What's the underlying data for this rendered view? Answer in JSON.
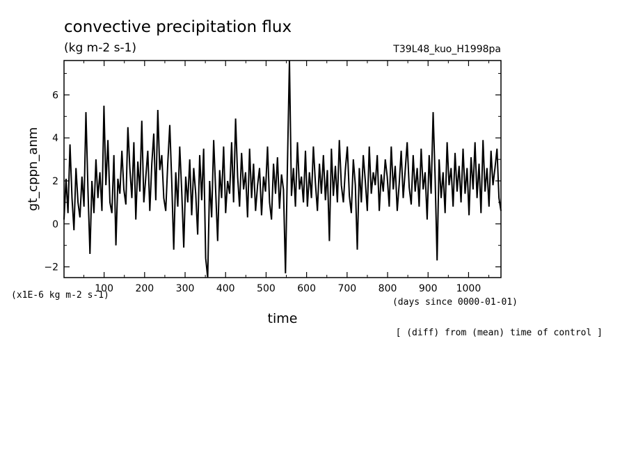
{
  "chart_data": {
    "type": "line",
    "title": "convective precipitation flux",
    "units": "(kg m-2 s-1)",
    "run_label": "T39L48_kuo_H1998pa",
    "xlabel": "time",
    "ylabel": "gt_cppn_anm",
    "x_units": "(days since 0000-01-01)",
    "y_scale_note": "(x1E-6 kg m-2 s-1)",
    "footnote": "[ (diff) from (mean) time of control ]",
    "xlim": [
      1,
      1080
    ],
    "ylim": [
      -2.5,
      7.6
    ],
    "x_ticks": [
      100,
      200,
      300,
      400,
      500,
      600,
      700,
      800,
      900,
      1000
    ],
    "y_ticks": [
      -2,
      0,
      2,
      4,
      6
    ],
    "grid": false,
    "series": [
      {
        "values_every_5_days": [
          0.2,
          2.1,
          0.5,
          3.7,
          1.2,
          -0.3,
          2.6,
          1.0,
          0.3,
          2.2,
          0.8,
          5.2,
          1.6,
          -1.4,
          2.0,
          0.5,
          3.0,
          1.2,
          2.4,
          0.6,
          5.5,
          1.8,
          3.9,
          1.0,
          0.5,
          3.2,
          -1.0,
          2.1,
          1.4,
          3.4,
          1.6,
          0.9,
          4.5,
          2.6,
          1.2,
          3.8,
          0.2,
          2.9,
          1.5,
          4.8,
          1.0,
          2.2,
          3.4,
          0.6,
          2.8,
          4.2,
          1.1,
          5.3,
          2.5,
          3.2,
          1.2,
          0.6,
          2.8,
          4.6,
          2.0,
          -1.2,
          2.4,
          0.8,
          3.6,
          1.5,
          -1.1,
          2.2,
          1.0,
          3.0,
          0.4,
          2.6,
          1.4,
          -0.5,
          3.2,
          1.1,
          3.5,
          -1.6,
          -2.5,
          2.0,
          0.3,
          3.9,
          1.6,
          -0.8,
          2.5,
          1.2,
          3.6,
          0.5,
          2.0,
          1.4,
          3.8,
          1.0,
          4.9,
          2.2,
          0.8,
          3.3,
          1.6,
          2.4,
          0.3,
          3.5,
          1.2,
          2.8,
          0.6,
          1.8,
          2.6,
          0.4,
          2.2,
          1.5,
          3.6,
          1.0,
          0.2,
          2.8,
          1.4,
          3.1,
          0.7,
          2.3,
          1.6,
          -2.3,
          2.9,
          7.6,
          1.3,
          2.6,
          0.8,
          3.8,
          1.6,
          2.2,
          1.0,
          3.4,
          0.8,
          2.4,
          1.2,
          3.6,
          1.9,
          0.6,
          2.8,
          1.4,
          3.2,
          1.1,
          2.5,
          -0.8,
          3.5,
          1.3,
          2.7,
          1.0,
          3.9,
          1.8,
          1.0,
          2.5,
          3.6,
          1.3,
          0.5,
          3.0,
          1.8,
          -1.2,
          2.6,
          1.0,
          3.2,
          2.0,
          0.6,
          3.6,
          1.4,
          2.4,
          1.8,
          3.2,
          0.6,
          2.3,
          1.5,
          3.0,
          2.2,
          0.8,
          3.6,
          1.6,
          2.7,
          0.6,
          1.9,
          3.4,
          1.2,
          2.5,
          3.8,
          1.7,
          0.9,
          3.2,
          1.5,
          2.6,
          0.8,
          3.5,
          1.6,
          2.4,
          0.2,
          3.2,
          1.4,
          5.2,
          2.1,
          -1.7,
          3.0,
          1.2,
          2.4,
          0.5,
          3.8,
          1.8,
          2.6,
          0.8,
          3.3,
          1.5,
          2.7,
          1.0,
          3.5,
          1.4,
          2.6,
          0.4,
          3.1,
          1.6,
          3.8,
          1.2,
          2.8,
          0.5,
          3.9,
          1.5,
          2.6,
          0.8,
          3.4,
          1.8,
          2.6,
          3.5,
          1.2,
          0.6
        ]
      }
    ]
  }
}
